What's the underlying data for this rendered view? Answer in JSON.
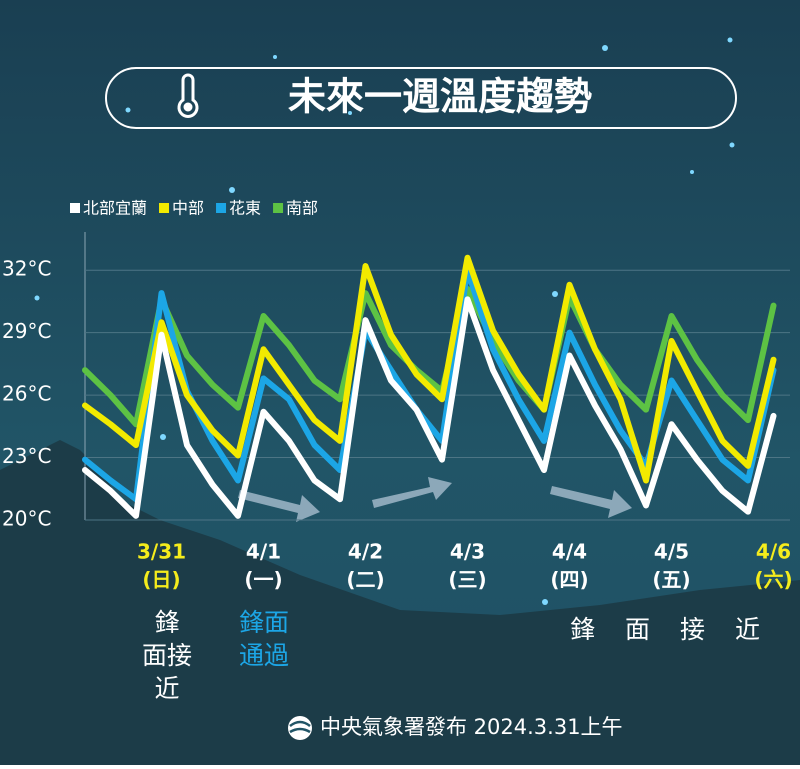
{
  "chart_data": {
    "type": "line",
    "title": "未來一週溫度趨勢",
    "categories": [
      null,
      null,
      null,
      "3/31",
      null,
      null,
      null,
      "4/1",
      null,
      null,
      null,
      "4/2",
      null,
      null,
      null,
      "4/3",
      null,
      null,
      null,
      "4/4",
      null,
      null,
      null,
      "4/5",
      null,
      null,
      null,
      "4/6"
    ],
    "weekdays": [
      null,
      null,
      null,
      "(日)",
      null,
      null,
      null,
      "(一)",
      null,
      null,
      null,
      "(二)",
      null,
      null,
      null,
      "(三)",
      null,
      null,
      null,
      "(四)",
      null,
      null,
      null,
      "(五)",
      null,
      null,
      null,
      "(六)"
    ],
    "category_label_colors": [
      null,
      null,
      null,
      "#f5ec1c",
      null,
      null,
      null,
      "#ffffff",
      null,
      null,
      null,
      "#ffffff",
      null,
      null,
      null,
      "#ffffff",
      null,
      null,
      null,
      "#ffffff",
      null,
      null,
      null,
      "#ffffff",
      null,
      null,
      null,
      "#f5ec1c"
    ],
    "series": [
      {
        "name": "北部宜蘭",
        "color": "#ffffff",
        "values": [
          22.4,
          21.4,
          20.2,
          28.9,
          23.6,
          21.7,
          20.2,
          25.2,
          23.8,
          21.9,
          21.0,
          29.6,
          26.7,
          25.3,
          22.9,
          30.6,
          27.2,
          24.8,
          22.4,
          27.9,
          25.5,
          23.4,
          20.7,
          24.6,
          22.9,
          21.4,
          20.4,
          25.0
        ]
      },
      {
        "name": "中部",
        "color": "#f2ea00",
        "values": [
          25.5,
          24.6,
          23.6,
          29.5,
          26.0,
          24.3,
          23.1,
          28.2,
          26.5,
          24.8,
          23.8,
          32.2,
          28.9,
          27.0,
          25.8,
          32.6,
          29.1,
          27.0,
          25.3,
          31.3,
          28.2,
          25.8,
          21.9,
          28.6,
          26.2,
          23.8,
          22.6,
          27.7
        ]
      },
      {
        "name": "花東",
        "color": "#1ca6e6",
        "values": [
          22.9,
          21.9,
          21.0,
          30.9,
          26.2,
          23.8,
          21.9,
          26.8,
          25.8,
          23.6,
          22.4,
          29.1,
          27.2,
          25.3,
          23.8,
          32.0,
          28.2,
          25.8,
          23.8,
          29.0,
          26.5,
          24.3,
          22.6,
          26.7,
          24.8,
          22.9,
          21.9,
          27.2
        ]
      },
      {
        "name": "南部",
        "color": "#5dc244",
        "values": [
          27.2,
          26.0,
          24.6,
          30.6,
          27.9,
          26.5,
          25.4,
          29.8,
          28.4,
          26.7,
          25.8,
          30.9,
          28.4,
          27.2,
          26.2,
          31.1,
          28.6,
          26.7,
          25.3,
          30.7,
          28.2,
          26.5,
          25.3,
          29.8,
          27.7,
          26.0,
          24.8,
          30.3
        ]
      }
    ],
    "ylim": [
      20,
      33.5
    ],
    "yticks": [
      {
        "value": 20,
        "label": "20°C"
      },
      {
        "value": 23,
        "label": "23°C"
      },
      {
        "value": 26,
        "label": "26°C"
      },
      {
        "value": 29,
        "label": "29°C"
      },
      {
        "value": 32,
        "label": "32°C"
      }
    ],
    "annotations": [
      {
        "lines": [
          "鋒",
          "面接",
          "近"
        ],
        "color": "#ffffff"
      },
      {
        "lines": [
          "鋒面",
          "通過"
        ],
        "color": "#1ca6e6"
      },
      {
        "lines": [
          "鋒面接近"
        ],
        "color": "#ffffff"
      }
    ],
    "footer": "中央氣象署發布 2024.3.31上午"
  }
}
